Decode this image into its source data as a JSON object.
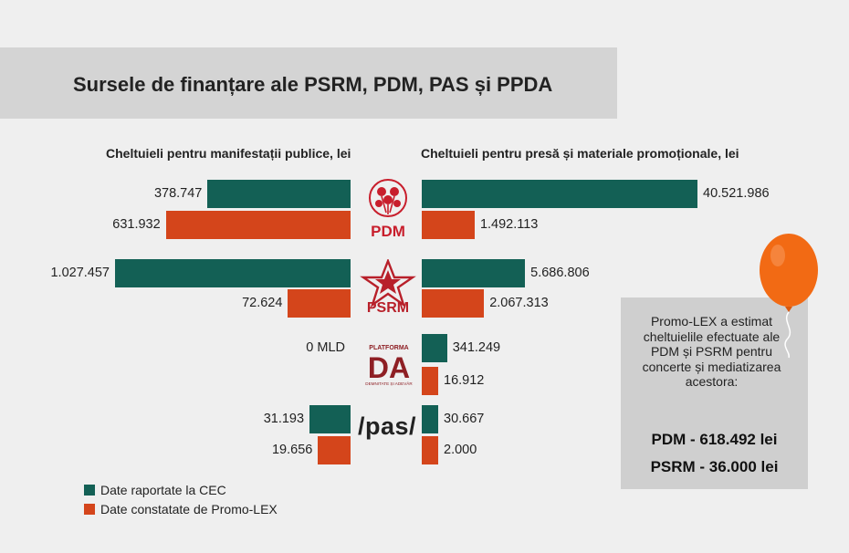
{
  "title": "Sursele de finanțare ale PSRM, PDM, PAS și PPDA",
  "left_header": "Cheltuieli pentru manifestații publice, lei",
  "right_header": "Cheltuieli pentru presă și materiale promoționale, lei",
  "parties": {
    "pdm": "PDM",
    "psrm": "PSRM",
    "da_top": "PLATFORMA",
    "da_main": "DA",
    "da_bottom": "DEMNITATE ȘI ADEVĂR",
    "pas": "/pas/"
  },
  "legend": {
    "cec": "Date raportate la CEC",
    "promo": "Date constatate de Promo-LEX"
  },
  "colors": {
    "cec": "#136055",
    "promo": "#d4451b",
    "pdm_red": "#c81e2c",
    "psrm_red": "#b8202a",
    "da_red": "#8e1f24",
    "balloon": "#f26a14"
  },
  "note": {
    "text": "Promo-LEX a estimat cheltuielile efectuate ale PDM și PSRM pentru concerte și mediatizarea acestora:",
    "line1": "PDM - 618.492 lei",
    "line2": "PSRM - 36.000 lei"
  },
  "chart_data": [
    {
      "type": "bar",
      "orientation": "horizontal",
      "title": "Cheltuieli pentru manifestații publice, lei",
      "categories": [
        "PDM",
        "PSRM",
        "PLATFORMA DA",
        "PAS"
      ],
      "series": [
        {
          "name": "Date raportate la CEC",
          "values": [
            378747,
            1027457,
            0,
            31193
          ],
          "labels": [
            "378.747",
            "1.027.457",
            "0 MLD",
            "31.193"
          ]
        },
        {
          "name": "Date constatate de Promo-LEX",
          "values": [
            631932,
            72624,
            null,
            19656
          ],
          "labels": [
            "631.932",
            "72.624",
            "",
            "19.656"
          ]
        }
      ]
    },
    {
      "type": "bar",
      "orientation": "horizontal",
      "title": "Cheltuieli pentru presă și materiale promoționale, lei",
      "categories": [
        "PDM",
        "PSRM",
        "PLATFORMA DA",
        "PAS"
      ],
      "series": [
        {
          "name": "Date raportate la CEC",
          "values": [
            40521986,
            5686806,
            341249,
            30667
          ],
          "labels": [
            "40.521.986",
            "5.686.806",
            "341.249",
            "30.667"
          ]
        },
        {
          "name": "Date constatate de Promo-LEX",
          "values": [
            1492113,
            2067313,
            16912,
            2000
          ],
          "labels": [
            "1.492.113",
            "2.067.313",
            "16.912",
            "2.000"
          ]
        }
      ]
    }
  ]
}
